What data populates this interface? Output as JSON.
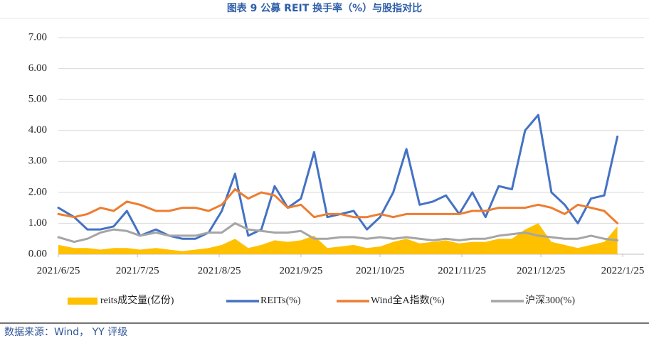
{
  "chart_data": {
    "type": "line",
    "title": "图表 9 公募 REIT 换手率（%）与股指对比",
    "source": "数据来源：Wind， YY 评级",
    "x": [
      "2021/6/25",
      "2021/7/1",
      "2021/7/6",
      "2021/7/11",
      "2021/7/16",
      "2021/7/21",
      "2021/7/26",
      "2021/8/1",
      "2021/8/6",
      "2021/8/11",
      "2021/8/16",
      "2021/8/21",
      "2021/8/26",
      "2021/8/31",
      "2021/9/5",
      "2021/9/10",
      "2021/9/15",
      "2021/9/20",
      "2021/9/25",
      "2021/9/30",
      "2021/10/5",
      "2021/10/10",
      "2021/10/15",
      "2021/10/20",
      "2021/10/25",
      "2021/10/30",
      "2021/11/4",
      "2021/11/9",
      "2021/11/14",
      "2021/11/19",
      "2021/11/24",
      "2021/11/29",
      "2021/12/4",
      "2021/12/9",
      "2021/12/14",
      "2021/12/19",
      "2021/12/24",
      "2021/12/29",
      "2022/1/3",
      "2022/1/8",
      "2022/1/13",
      "2022/1/18",
      "2022/1/23"
    ],
    "series": [
      {
        "name": "reits成交量(亿份)",
        "color": "#ffc000",
        "kind": "area",
        "values": [
          0.3,
          0.2,
          0.2,
          0.15,
          0.2,
          0.2,
          0.15,
          0.2,
          0.15,
          0.1,
          0.15,
          0.2,
          0.3,
          0.5,
          0.2,
          0.3,
          0.45,
          0.4,
          0.45,
          0.6,
          0.2,
          0.25,
          0.3,
          0.2,
          0.25,
          0.4,
          0.5,
          0.35,
          0.4,
          0.45,
          0.35,
          0.4,
          0.4,
          0.5,
          0.5,
          0.8,
          1.0,
          0.4,
          0.3,
          0.2,
          0.3,
          0.4,
          0.9
        ]
      },
      {
        "name": "REITs(%)",
        "color": "#4472c4",
        "kind": "line",
        "values": [
          1.5,
          1.2,
          0.8,
          0.8,
          0.9,
          1.4,
          0.6,
          0.8,
          0.6,
          0.5,
          0.5,
          0.7,
          1.4,
          2.6,
          0.6,
          0.8,
          2.2,
          1.5,
          1.8,
          3.3,
          1.2,
          1.3,
          1.4,
          0.8,
          1.2,
          2.0,
          3.4,
          1.6,
          1.7,
          1.9,
          1.3,
          2.0,
          1.2,
          2.2,
          2.1,
          4.0,
          4.5,
          2.0,
          1.6,
          1.0,
          1.8,
          1.9,
          3.8
        ]
      },
      {
        "name": "Wind全A指数(%)",
        "color": "#ed7d31",
        "kind": "line",
        "values": [
          1.3,
          1.2,
          1.3,
          1.5,
          1.4,
          1.7,
          1.6,
          1.4,
          1.4,
          1.5,
          1.5,
          1.4,
          1.6,
          2.1,
          1.8,
          2.0,
          1.9,
          1.5,
          1.6,
          1.2,
          1.3,
          1.3,
          1.2,
          1.2,
          1.3,
          1.2,
          1.3,
          1.3,
          1.3,
          1.3,
          1.3,
          1.4,
          1.4,
          1.5,
          1.5,
          1.5,
          1.6,
          1.5,
          1.3,
          1.6,
          1.5,
          1.4,
          1.0
        ]
      },
      {
        "name": "沪深300(%)",
        "color": "#a5a5a5",
        "kind": "line",
        "values": [
          0.55,
          0.4,
          0.5,
          0.7,
          0.8,
          0.75,
          0.6,
          0.7,
          0.6,
          0.6,
          0.6,
          0.7,
          0.7,
          1.0,
          0.8,
          0.75,
          0.7,
          0.7,
          0.75,
          0.5,
          0.5,
          0.55,
          0.55,
          0.5,
          0.55,
          0.5,
          0.55,
          0.5,
          0.45,
          0.5,
          0.45,
          0.5,
          0.5,
          0.6,
          0.65,
          0.7,
          0.6,
          0.55,
          0.5,
          0.5,
          0.6,
          0.5,
          0.45
        ]
      }
    ],
    "xlim": [
      "2021/6/25",
      "2022/1/25"
    ],
    "xticks": [
      "2021/6/25",
      "2021/7/25",
      "2021/8/25",
      "2021/9/25",
      "2021/10/25",
      "2021/11/25",
      "2021/12/25",
      "2022/1/25"
    ],
    "ylim": [
      0,
      7
    ],
    "yticks": [
      {
        "value": 0,
        "label": "0.00"
      },
      {
        "value": 1,
        "label": "1.00"
      },
      {
        "value": 2,
        "label": "2.00"
      },
      {
        "value": 3,
        "label": "3.00"
      },
      {
        "value": 4,
        "label": "4.00"
      },
      {
        "value": 5,
        "label": "5.00"
      },
      {
        "value": 6,
        "label": "6.00"
      },
      {
        "value": 7,
        "label": "7.00"
      }
    ]
  }
}
